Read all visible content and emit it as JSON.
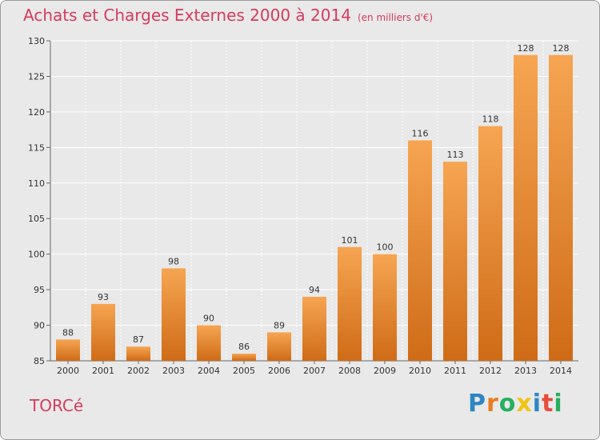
{
  "header": {
    "title": "Achats et Charges Externes 2000 à 2014",
    "subtitle": "(en milliers d'€)"
  },
  "commune": "TORCé",
  "logo": {
    "text": "Proxiti",
    "letter_colors": [
      "#2e86c1",
      "#e67e22",
      "#27ae60",
      "#f1c40f",
      "#2e86c1",
      "#e74c3c",
      "#27ae60"
    ]
  },
  "colors": {
    "title": "#d53b5f",
    "background": "#e9e9e9",
    "bar_top": "#f6a552",
    "bar_bottom": "#cf6b17",
    "grid": "#ffffff",
    "axis": "#666666"
  },
  "chart_data": {
    "type": "bar",
    "categories": [
      "2000",
      "2001",
      "2002",
      "2003",
      "2004",
      "2005",
      "2006",
      "2007",
      "2008",
      "2009",
      "2010",
      "2011",
      "2012",
      "2013",
      "2014"
    ],
    "values": [
      88,
      93,
      87,
      98,
      90,
      86,
      89,
      94,
      101,
      100,
      116,
      113,
      118,
      128,
      128
    ],
    "ylim": [
      85,
      130
    ],
    "yticks": [
      85,
      90,
      95,
      100,
      105,
      110,
      115,
      120,
      125,
      130
    ],
    "grid": true,
    "data_labels": true,
    "xlabel": "",
    "ylabel": ""
  }
}
